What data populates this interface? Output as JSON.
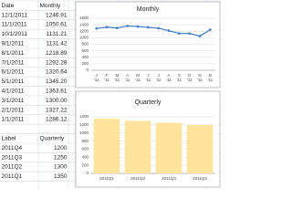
{
  "table": {
    "header": [
      "Date",
      "Monthly"
    ],
    "rows": [
      [
        "12/1/2011",
        "1246.91"
      ],
      [
        "11/1/2011",
        "1050.61"
      ],
      [
        "10/1/2011",
        "1131.21"
      ],
      [
        "9/1/2011",
        "1131.42"
      ],
      [
        "8/1/2011",
        "1218.89"
      ],
      [
        "7/1/2011",
        "1292.28"
      ],
      [
        "6/1/2011",
        "1320.64"
      ],
      [
        "5/1/2011",
        "1345.20"
      ],
      [
        "4/1/2011",
        "1363.61"
      ],
      [
        "3/1/2011",
        "1300.00"
      ],
      [
        "2/1/2011",
        "1327.22"
      ],
      [
        "1/1/2011",
        "1286.12"
      ]
    ]
  },
  "table2": {
    "header": [
      "Label",
      "Quarterly"
    ],
    "rows": [
      [
        "2011Q4",
        "1200"
      ],
      [
        "2011Q3",
        "1250"
      ],
      [
        "2011Q2",
        "1300"
      ],
      [
        "2011Q1",
        "1350"
      ]
    ]
  },
  "chart_data": [
    {
      "type": "line",
      "title": "Monthly",
      "categories": [
        "J",
        "F",
        "M",
        "A",
        "M",
        "J",
        "J",
        "A",
        "S",
        "O",
        "N",
        "D"
      ],
      "x_sublabels": [
        "'11",
        "'11",
        "'11",
        "'11",
        "'11",
        "'11",
        "'11",
        "'11",
        "'11",
        "'11",
        "'11",
        "'11"
      ],
      "values": [
        1286.12,
        1327.22,
        1300.0,
        1363.61,
        1345.2,
        1320.64,
        1292.28,
        1218.89,
        1131.42,
        1131.21,
        1050.61,
        1246.91
      ],
      "color": "#3a7cc4",
      "ylim": [
        0,
        1600
      ],
      "yticks": [
        0,
        200,
        400,
        600,
        800,
        1000,
        1200,
        1400,
        1600
      ],
      "grid": true
    },
    {
      "type": "bar",
      "title": "Quarterly",
      "categories": [
        "2011Q1",
        "2011Q2",
        "2011Q3",
        "2011Q4"
      ],
      "values": [
        1350,
        1300,
        1250,
        1200
      ],
      "color": "#fde39c",
      "ylim": [
        0,
        1400
      ],
      "yticks": [
        0,
        200,
        400,
        600,
        800,
        1000,
        1200,
        1400
      ],
      "grid": true
    }
  ]
}
